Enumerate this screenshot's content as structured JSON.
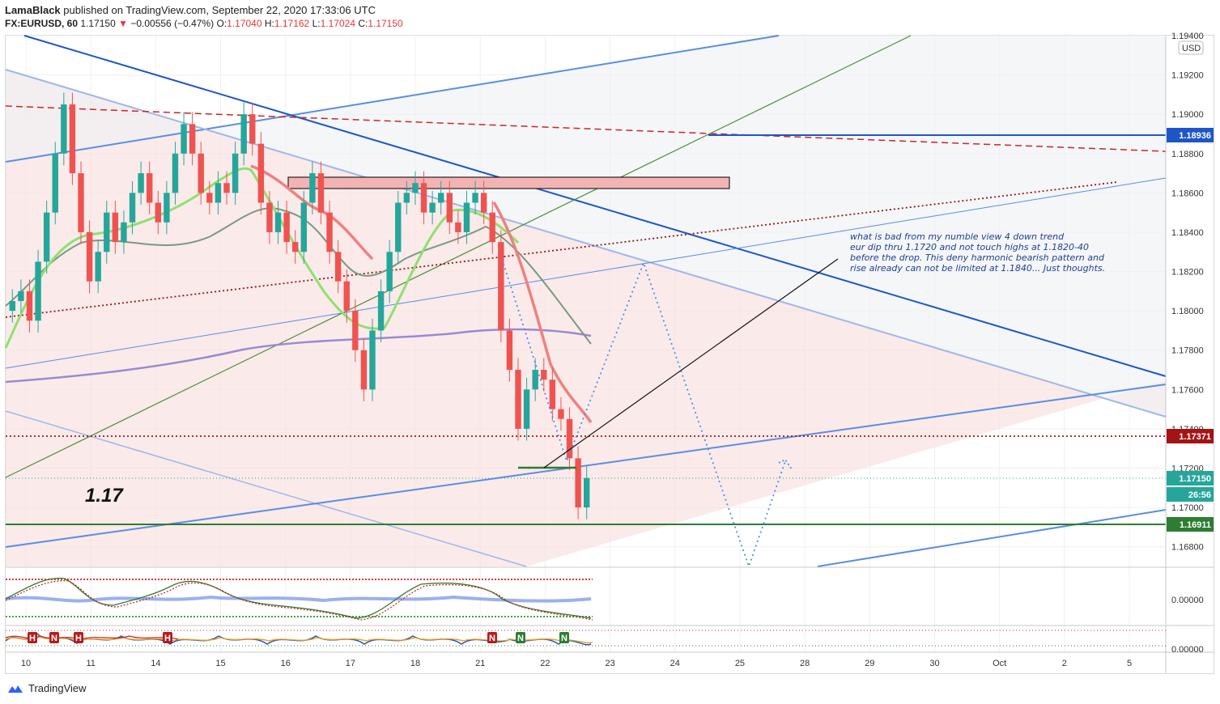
{
  "header": {
    "author": "LamaBlack",
    "published_text": "published on TradingView.com, September 22, 2020 17:33:06 UTC",
    "symbol": "FX:EURUSD, 60",
    "last": "1.17150",
    "change": "−0.00556 (−0.47%)",
    "o_label": "O:",
    "o": "1.17040",
    "h_label": "H:",
    "h": "1.17162",
    "l_label": "L:",
    "l": "1.17024",
    "c_label": "C:",
    "c": "1.17150"
  },
  "currency_badge": "USD",
  "footer": {
    "brand": "TradingView"
  },
  "annotation": {
    "big_label": "1.17",
    "note_lines": [
      "what is bad from my numble view 4 down trend",
      "eur dip thru 1.1720 and not touch highs at 1.1820-40",
      "before the drop. This deny harmonic bearish pattern and",
      "rise already can not be limited at 1.1840... Just thoughts."
    ]
  },
  "colors": {
    "up": "#26a69a",
    "down": "#ef5350",
    "blue_line": "#1e56c8",
    "green_line": "#2e7d32",
    "red_dash": "#c62828",
    "dotted_brown": "#8b1a1a",
    "resistance_box": "#f4b3b3",
    "ma_red": "#ef8080",
    "ma_green": "#90e070",
    "ma_grey": "#7a9a80",
    "ma_purple": "#9a8ad0"
  },
  "chart_data": {
    "type": "candlestick",
    "symbol": "FX:EURUSD",
    "interval": "60",
    "x_ticks": [
      "10",
      "11",
      "14",
      "15",
      "16",
      "17",
      "18",
      "21",
      "22",
      "23",
      "24",
      "25",
      "28",
      "29",
      "30",
      "Oct",
      "2",
      "5"
    ],
    "y_ticks": [
      "1.19400",
      "1.19200",
      "1.19000",
      "1.18800",
      "1.18600",
      "1.18400",
      "1.18200",
      "1.18000",
      "1.17800",
      "1.17600",
      "1.17400",
      "1.17200",
      "1.17000",
      "1.16800"
    ],
    "ylim": [
      1.167,
      1.194
    ],
    "price_labels": [
      {
        "value": "1.18936",
        "color": "#1e56c8"
      },
      {
        "value": "1.17371",
        "color": "#a31515"
      },
      {
        "value": "1.17150",
        "color": "#26a69a"
      },
      {
        "value": "26:56",
        "color": "#26a69a"
      },
      {
        "value": "1.16911",
        "color": "#2e7d32"
      }
    ],
    "horizontal_levels": [
      1.18936,
      1.17371,
      1.16911
    ],
    "resistance_zone": [
      1.1865,
      1.1871
    ],
    "closes": [
      1.1805,
      1.181,
      1.1795,
      1.1825,
      1.185,
      1.188,
      1.1905,
      1.187,
      1.184,
      1.1815,
      1.183,
      1.185,
      1.1835,
      1.1845,
      1.186,
      1.187,
      1.1855,
      1.1845,
      1.186,
      1.188,
      1.1895,
      1.188,
      1.186,
      1.1855,
      1.1865,
      1.186,
      1.188,
      1.19,
      1.1885,
      1.1855,
      1.184,
      1.185,
      1.1835,
      1.183,
      1.1855,
      1.187,
      1.185,
      1.183,
      1.1815,
      1.18,
      1.178,
      1.176,
      1.179,
      1.181,
      1.183,
      1.1855,
      1.186,
      1.1865,
      1.185,
      1.1855,
      1.186,
      1.1845,
      1.184,
      1.1855,
      1.186,
      1.185,
      1.1835,
      1.179,
      1.177,
      1.174,
      1.176,
      1.177,
      1.1765,
      1.175,
      1.1745,
      1.1725,
      1.17,
      1.1715
    ],
    "oscillator1_tick": "0.00000",
    "oscillator2_tick": "0.00000",
    "oscillator2_markers": [
      "H",
      "N",
      "H",
      "H",
      "N",
      "N",
      "N"
    ]
  }
}
